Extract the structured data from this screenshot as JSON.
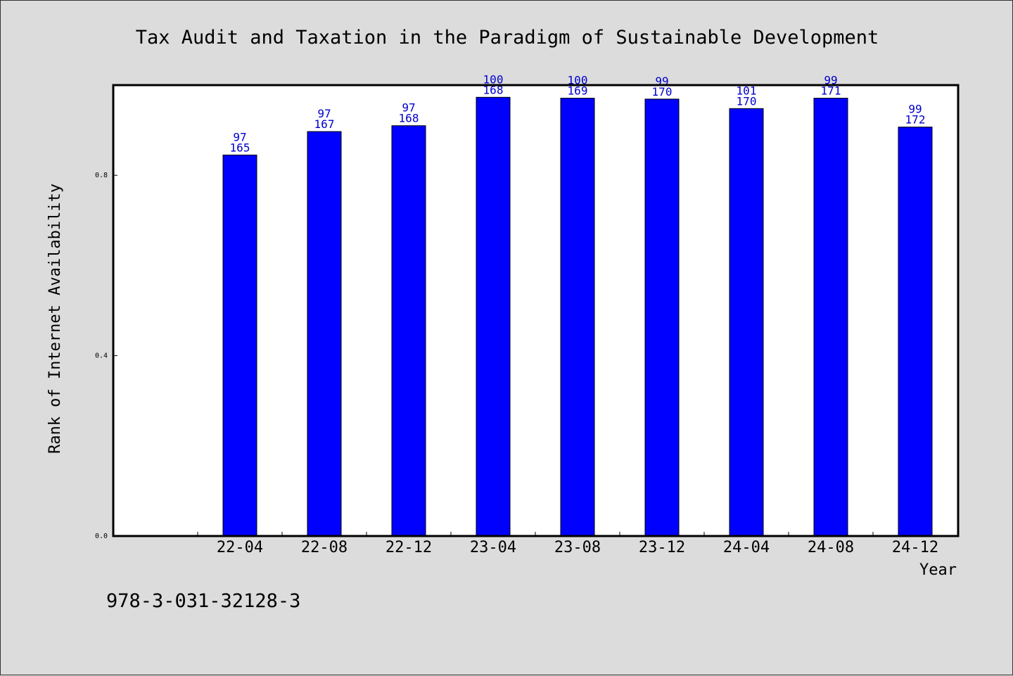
{
  "chart_data": {
    "type": "bar",
    "title": "Tax Audit and Taxation in the Paradigm of Sustainable Development",
    "xlabel": "Year",
    "ylabel": "Rank of Internet Availability",
    "categories": [
      "22-04",
      "22-08",
      "22-12",
      "23-04",
      "23-08",
      "23-12",
      "24-04",
      "24-08",
      "24-12"
    ],
    "values": [
      0.845,
      0.897,
      0.91,
      0.973,
      0.971,
      0.969,
      0.948,
      0.971,
      0.907
    ],
    "label_top": [
      "97",
      "97",
      "97",
      "100",
      "100",
      "99",
      "101",
      "99",
      "99"
    ],
    "label_bottom": [
      "165",
      "167",
      "168",
      "168",
      "169",
      "170",
      "170",
      "171",
      "172"
    ],
    "yticks": [
      0.0,
      0.4,
      0.8
    ],
    "ylim": [
      0,
      1.0
    ],
    "grid": false,
    "legend": "none",
    "colors": {
      "bar": "#0000ff",
      "label": "#0000cc",
      "plot_bg": "#ffffff",
      "page_bg": "#dcdcdc"
    }
  },
  "footer": {
    "isbn": "978-3-031-32128-3"
  }
}
